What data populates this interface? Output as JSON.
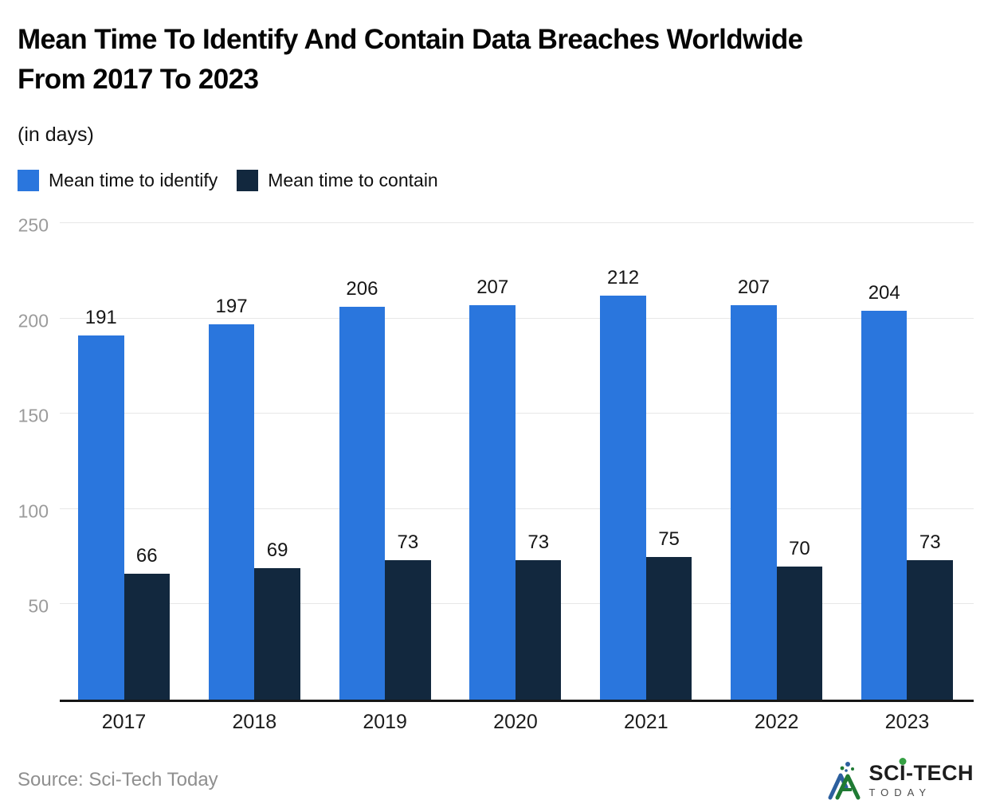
{
  "header": {
    "title": "Mean Time To Identify And Contain Data Breaches Worldwide From 2017 To 2023",
    "subtitle": "(in days)"
  },
  "legend": {
    "items": [
      {
        "label": "Mean time to identify",
        "color": "#2a76dd"
      },
      {
        "label": "Mean time to contain",
        "color": "#12283e"
      }
    ]
  },
  "chart_data": {
    "type": "bar",
    "title": "Mean Time To Identify And Contain Data Breaches Worldwide From 2017 To 2023",
    "subtitle": "(in days)",
    "categories": [
      "2017",
      "2018",
      "2019",
      "2020",
      "2021",
      "2022",
      "2023"
    ],
    "series": [
      {
        "name": "Mean time to identify",
        "color": "#2a76dd",
        "values": [
          191,
          197,
          206,
          207,
          212,
          207,
          204
        ]
      },
      {
        "name": "Mean time to contain",
        "color": "#12283e",
        "values": [
          66,
          69,
          73,
          73,
          75,
          70,
          73
        ]
      }
    ],
    "xlabel": "",
    "ylabel": "days",
    "ylim": [
      0,
      250
    ],
    "yticks": [
      50,
      100,
      150,
      200,
      250
    ],
    "grid": true,
    "legend_position": "top",
    "value_labels": true,
    "colors": {
      "gridline": "#e7e7e7",
      "axis_line": "#161616",
      "tick_label": "#9b9b9b"
    }
  },
  "footer": {
    "source": "Source: Sci-Tech Today",
    "logo": {
      "line1_pre": "SC",
      "line1_i": "I",
      "line1_post": "-TECH",
      "line2": "TODAY"
    }
  }
}
